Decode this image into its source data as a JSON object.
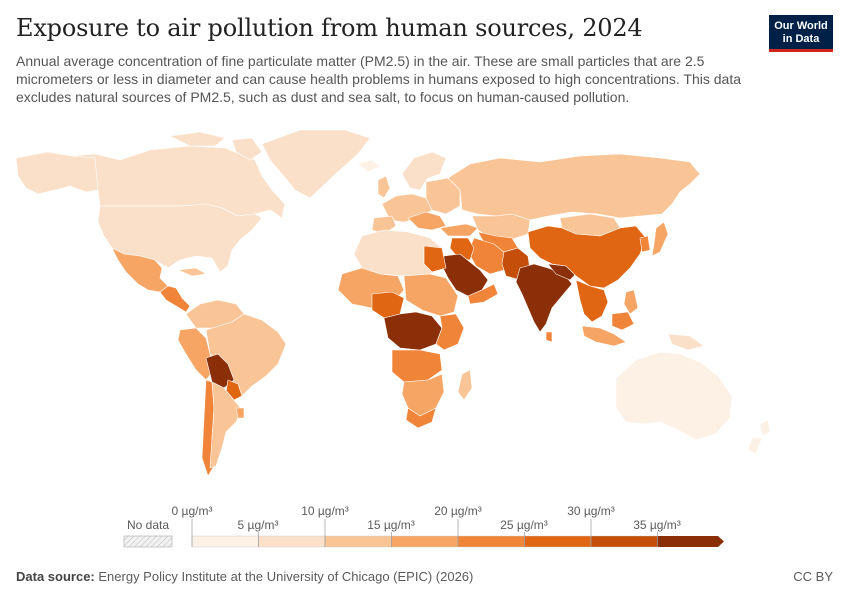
{
  "header": {
    "title": "Exposure to air pollution from human sources, 2024",
    "subtitle": "Annual average concentration of fine particulate matter (PM2.5) in the air. These are small particles that are 2.5 micrometers or less in diameter and can cause health problems in humans exposed to high concentrations. This data excludes natural sources of PM2.5, such as dust and sea salt, to focus on human-caused pollution.",
    "logo_line1": "Our World",
    "logo_line2": "in Data"
  },
  "legend": {
    "no_data_label": "No data",
    "upper_labels": [
      "0 µg/m³",
      "10 µg/m³",
      "20 µg/m³",
      "30 µg/m³"
    ],
    "lower_labels": [
      "5 µg/m³",
      "15 µg/m³",
      "25 µg/m³",
      "35 µg/m³"
    ],
    "colors": [
      "#fdf1e6",
      "#fbe0c9",
      "#f9c597",
      "#f6a565",
      "#f08438",
      "#e06614",
      "#c54e0a",
      "#8a2f08"
    ]
  },
  "colors": {
    "no_data": "#e6e6e6",
    "ocean": "#ffffff",
    "border": "#ffffff"
  },
  "footer": {
    "source_label": "Data source:",
    "source_text": "Energy Policy Institute at the University of Chicago (EPIC) (2026)",
    "license": "CC BY"
  }
}
